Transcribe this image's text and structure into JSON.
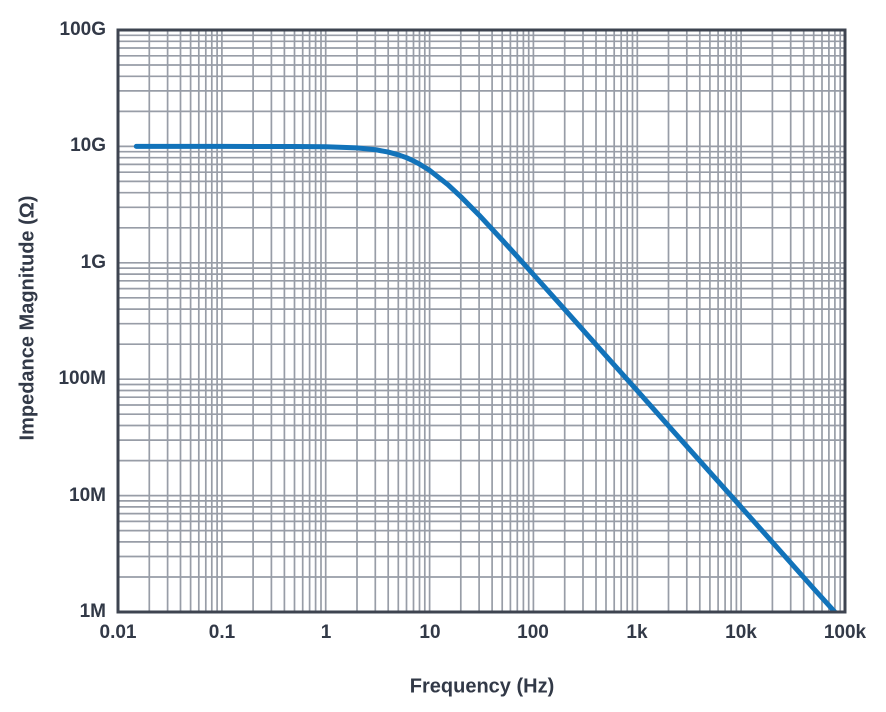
{
  "chart_data": {
    "type": "line",
    "title": "",
    "xlabel": "Frequency (Hz)",
    "ylabel": "Impedance Magnitude (Ω)",
    "x_scale": "log",
    "y_scale": "log",
    "xlim": [
      0.01,
      100000
    ],
    "ylim": [
      1000000,
      100000000000
    ],
    "grid": "log major and minor gridlines on both axes",
    "legend": "none",
    "x_ticks": [
      {
        "label": "0.01",
        "value": 0.01
      },
      {
        "label": "0.1",
        "value": 0.1
      },
      {
        "label": "1",
        "value": 1
      },
      {
        "label": "10",
        "value": 10
      },
      {
        "label": "100",
        "value": 100
      },
      {
        "label": "1k",
        "value": 1000
      },
      {
        "label": "10k",
        "value": 10000
      },
      {
        "label": "100k",
        "value": 100000
      }
    ],
    "y_ticks": [
      {
        "label": "100G",
        "value": 100000000000.0
      },
      {
        "label": "10G",
        "value": 10000000000.0
      },
      {
        "label": "1G",
        "value": 1000000000.0
      },
      {
        "label": "100M",
        "value": 100000000.0
      },
      {
        "label": "10M",
        "value": 10000000.0
      },
      {
        "label": "1M",
        "value": 1000000.0
      }
    ],
    "series": [
      {
        "name": "impedance-magnitude",
        "color": "#1273BA",
        "points": [
          [
            0.015,
            10000000000.0
          ],
          [
            0.02,
            10000000000.0
          ],
          [
            0.05,
            10000000000.0
          ],
          [
            0.1,
            10000000000.0
          ],
          [
            0.2,
            9990000000.0
          ],
          [
            0.5,
            9980000000.0
          ],
          [
            1,
            9920000000.0
          ],
          [
            2,
            9700000000.0
          ],
          [
            3,
            9360000000.0
          ],
          [
            4,
            8940000000.0
          ],
          [
            5,
            8470000000.0
          ],
          [
            6,
            7990000000.0
          ],
          [
            7,
            7510000000.0
          ],
          [
            8,
            7050000000.0
          ],
          [
            10,
            6230000000.0
          ],
          [
            15,
            4690000000.0
          ],
          [
            20,
            3700000000.0
          ],
          [
            30,
            2570000000.0
          ],
          [
            50,
            1570000000.0
          ],
          [
            70,
            1130000000.0
          ],
          [
            100,
            793000000.0
          ],
          [
            200,
            398000000.0
          ],
          [
            500,
            159000000.0
          ],
          [
            1000,
            79600000.0
          ],
          [
            2000,
            39800000.0
          ],
          [
            5000,
            15900000.0
          ],
          [
            10000,
            7960000.0
          ],
          [
            20000,
            3980000.0
          ],
          [
            50000,
            1590000.0
          ],
          [
            80000,
            1000000.0
          ]
        ]
      }
    ],
    "style": {
      "curve_color": "#1273BA",
      "curve_width": 5,
      "grid_color": "#989DA7",
      "frame_color": "#3E4450",
      "text_color": "#323947",
      "background": "#FFFFFF"
    }
  }
}
